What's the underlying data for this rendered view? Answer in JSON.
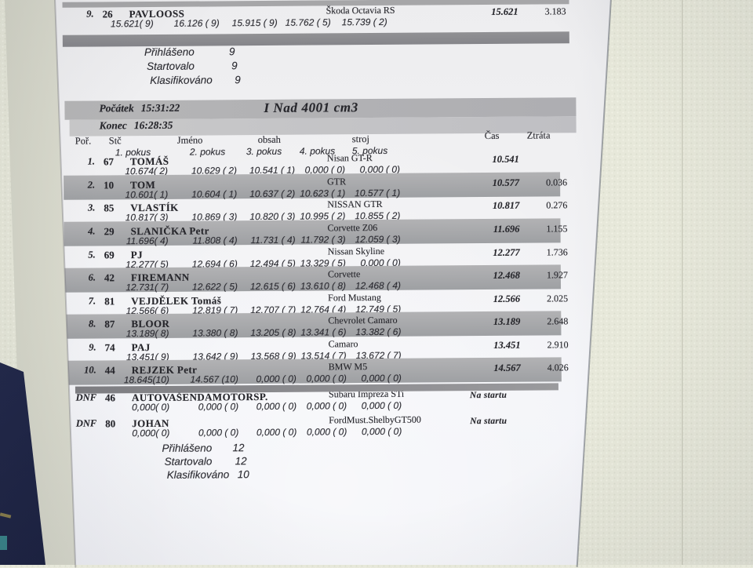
{
  "colors": {
    "paper": "#f2f2f5",
    "background_wall": "#e7e8da",
    "row_shading": "#a8a9ab",
    "ink": "#26262b",
    "binder": "#1a2040"
  },
  "prev_class_row": {
    "pos": "9.",
    "num": "26",
    "name": "PAVLOOSS",
    "car": "Škoda Octavia RS",
    "attempts": [
      "15.621( 9)",
      "16.126 ( 9)",
      "15.915 ( 9)",
      "15.762 ( 5)",
      "15.739 ( 2)"
    ],
    "time": "15.621",
    "gap": "3.183"
  },
  "summary_prev": [
    {
      "label": "Přihlášeno",
      "value": "9"
    },
    {
      "label": "Startovalo",
      "value": "9"
    },
    {
      "label": "Klasifikováno",
      "value": "9"
    }
  ],
  "session": {
    "start_label": "Počátek",
    "start_time": "15:31:22",
    "end_label": "Konec",
    "end_time": "16:28:35",
    "class_title": "I Nad 4001 cm3"
  },
  "columns": {
    "pos": "Poř.",
    "num": "Stč",
    "name": "Jméno",
    "capacity": "obsah",
    "machine": "stroj",
    "time": "Čas",
    "gap": "Ztráta",
    "attempts": [
      "1. pokus",
      "2. pokus",
      "3. pokus",
      "4. pokus",
      "5. pokus"
    ]
  },
  "results": [
    {
      "pos": "1.",
      "num": "67",
      "name": "TOMÁŠ",
      "car": "Nisan GT-R",
      "attempts": [
        "10.674( 2)",
        "10.629 ( 2)",
        "10.541 ( 1)",
        "0,000 ( 0)",
        "0,000 ( 0)"
      ],
      "time": "10.541",
      "gap": "",
      "shaded": false
    },
    {
      "pos": "2.",
      "num": "10",
      "name": "TOM",
      "car": "GTR",
      "attempts": [
        "10.601( 1)",
        "10.604 ( 1)",
        "10.637 ( 2)",
        "10.623 ( 1)",
        "10.577 ( 1)"
      ],
      "time": "10.577",
      "gap": "0.036",
      "shaded": true
    },
    {
      "pos": "3.",
      "num": "85",
      "name": "VLASTÍK",
      "car": "NISSAN GTR",
      "attempts": [
        "10.817( 3)",
        "10.869 ( 3)",
        "10.820 ( 3)",
        "10.995 ( 2)",
        "10.855 ( 2)"
      ],
      "time": "10.817",
      "gap": "0.276",
      "shaded": false
    },
    {
      "pos": "4.",
      "num": "29",
      "name": "SLANIČKA Petr",
      "car": "Corvette Z06",
      "attempts": [
        "11.696( 4)",
        "11.808 ( 4)",
        "11.731 ( 4)",
        "11.792 ( 3)",
        "12.059 ( 3)"
      ],
      "time": "11.696",
      "gap": "1.155",
      "shaded": true
    },
    {
      "pos": "5.",
      "num": "69",
      "name": "PJ",
      "car": "Nissan Skyline",
      "attempts": [
        "12.277( 5)",
        "12.694 ( 6)",
        "12.494 ( 5)",
        "13.329 ( 5)",
        "0,000 ( 0)"
      ],
      "time": "12.277",
      "gap": "1.736",
      "shaded": false
    },
    {
      "pos": "6.",
      "num": "42",
      "name": "FIREMANN",
      "car": "Corvette",
      "attempts": [
        "12.731( 7)",
        "12.622 ( 5)",
        "12.615 ( 6)",
        "13.610 ( 8)",
        "12.468 ( 4)"
      ],
      "time": "12.468",
      "gap": "1.927",
      "shaded": true
    },
    {
      "pos": "7.",
      "num": "81",
      "name": "VEJDĚLEK Tomáš",
      "car": "Ford Mustang",
      "attempts": [
        "12.566( 6)",
        "12.819 ( 7)",
        "12.707 ( 7)",
        "12.764 ( 4)",
        "12.749 ( 5)"
      ],
      "time": "12.566",
      "gap": "2.025",
      "shaded": false
    },
    {
      "pos": "8.",
      "num": "87",
      "name": "BLOOR",
      "car": "Chevrolet Camaro",
      "attempts": [
        "13.189( 8)",
        "13.380 ( 8)",
        "13.205 ( 8)",
        "13.341 ( 6)",
        "13.382 ( 6)"
      ],
      "time": "13.189",
      "gap": "2.648",
      "shaded": true
    },
    {
      "pos": "9.",
      "num": "74",
      "name": "PAJ",
      "car": "Camaro",
      "attempts": [
        "13.451( 9)",
        "13.642 ( 9)",
        "13.568 ( 9)",
        "13.514 ( 7)",
        "13.672 ( 7)"
      ],
      "time": "13.451",
      "gap": "2.910",
      "shaded": false
    },
    {
      "pos": "10.",
      "num": "44",
      "name": "REJZEK Petr",
      "car": "BMW M5",
      "attempts": [
        "18.645(10)",
        "14.567 (10)",
        "0,000 ( 0)",
        "0,000 ( 0)",
        "0,000 ( 0)"
      ],
      "time": "14.567",
      "gap": "4.026",
      "shaded": true
    },
    {
      "pos": "DNF",
      "num": "46",
      "name": "AUTOVAŠENDAMOTORSP.",
      "car": "Subaru Impreza STi",
      "attempts": [
        "0,000( 0)",
        "0,000 ( 0)",
        "0,000 ( 0)",
        "0,000 ( 0)",
        "0,000 ( 0)"
      ],
      "time": "",
      "gap": "",
      "status": "Na startu",
      "shaded": false
    },
    {
      "pos": "DNF",
      "num": "80",
      "name": "JOHAN",
      "car": "FordMust.ShelbyGT500",
      "attempts": [
        "0,000( 0)",
        "0,000 ( 0)",
        "0,000 ( 0)",
        "0,000 ( 0)",
        "0,000 ( 0)"
      ],
      "time": "",
      "gap": "",
      "status": "Na startu",
      "shaded": false
    }
  ],
  "summary_class": [
    {
      "label": "Přihlášeno",
      "value": "12"
    },
    {
      "label": "Startovalo",
      "value": "12"
    },
    {
      "label": "Klasifikováno",
      "value": "10"
    }
  ]
}
